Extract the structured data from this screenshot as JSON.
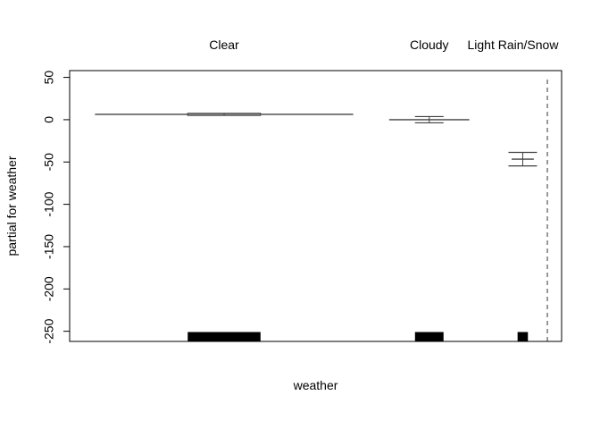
{
  "chart_data": {
    "type": "termplot",
    "title": "",
    "xlabel": "weather",
    "ylabel": "partial for weather",
    "ylim": [
      -262,
      58
    ],
    "yticks": [
      50,
      0,
      -50,
      -100,
      -150,
      -200,
      -250
    ],
    "ytick_labels": [
      "50",
      "0",
      "-50",
      "-100",
      "-150",
      "-200",
      "-250"
    ],
    "xlim": [
      0,
      1
    ],
    "categories": [
      "Clear",
      "Cloudy",
      "Light Rain/Snow"
    ],
    "category_centers": [
      0.314,
      0.731,
      0.921
    ],
    "category_widths": [
      0.525,
      0.163,
      0.045
    ],
    "partial_effects": [
      6.3,
      0,
      -46.6
    ],
    "se_upper": [
      7.6,
      3.7,
      -38.6
    ],
    "se_lower": [
      5.0,
      -3.7,
      -54.6
    ],
    "rug_heights": [
      10.5,
      10.5,
      10.5
    ],
    "rug_widths": [
      0.148,
      0.058,
      0.021
    ],
    "reference_x": 0.971
  },
  "colors": {
    "axis": "#000000",
    "effect_line": "#404040",
    "se": "#404040",
    "rug": "#000000",
    "reference_line": "#555555"
  }
}
